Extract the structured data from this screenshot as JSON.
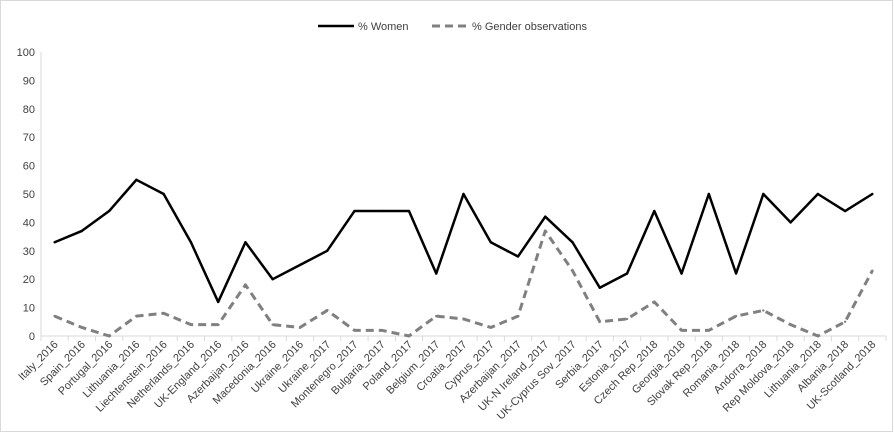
{
  "chart_data": {
    "type": "line",
    "title": "",
    "xlabel": "",
    "ylabel": "",
    "ylim": [
      0,
      100
    ],
    "yticks": [
      0,
      10,
      20,
      30,
      40,
      50,
      60,
      70,
      80,
      90,
      100
    ],
    "grid": false,
    "legend_position": "top-center",
    "categories": [
      "Italy_2016",
      "Spain_2016",
      "Portugal_2016",
      "Lithuania_2016",
      "Liechtenstein_2016",
      "Netherlands_2016",
      "UK-England_2016",
      "Azerbaijan_2016",
      "Macedonia_2016",
      "Ukraine_2016",
      "Ukraine_2017",
      "Montenegro_2017",
      "Bulgaria_2017",
      "Poland_2017",
      "Belgium_2017",
      "Croatia_2017",
      "Cyprus_2017",
      "Azerbaijan_2017",
      "UK-N Ireland_2017",
      "UK-Cyprus Sov_2017",
      "Serbia_2017",
      "Estonia_2017",
      "Czech Rep_2018",
      "Georgia_2018",
      "Slovak Rep_2018",
      "Romania_2018",
      "Andorra_2018",
      "Rep Moldova_2018",
      "Lithuania_2018",
      "Albania_2018",
      "UK-Scotland_2018"
    ],
    "series": [
      {
        "name": "% Women",
        "color": "#000000",
        "dash": "solid",
        "values": [
          33,
          37,
          44,
          55,
          50,
          33,
          12,
          33,
          20,
          25,
          30,
          44,
          44,
          44,
          22,
          50,
          33,
          28,
          42,
          33,
          17,
          22,
          44,
          22,
          50,
          22,
          50,
          40,
          50,
          44,
          50
        ]
      },
      {
        "name": "% Gender observations",
        "color": "#808080",
        "dash": "dashed",
        "values": [
          7,
          3,
          0,
          7,
          8,
          4,
          4,
          18,
          4,
          3,
          9,
          2,
          2,
          0,
          7,
          6,
          3,
          7,
          37,
          23,
          5,
          6,
          12,
          2,
          2,
          7,
          9,
          4,
          0,
          5,
          23
        ]
      }
    ]
  }
}
